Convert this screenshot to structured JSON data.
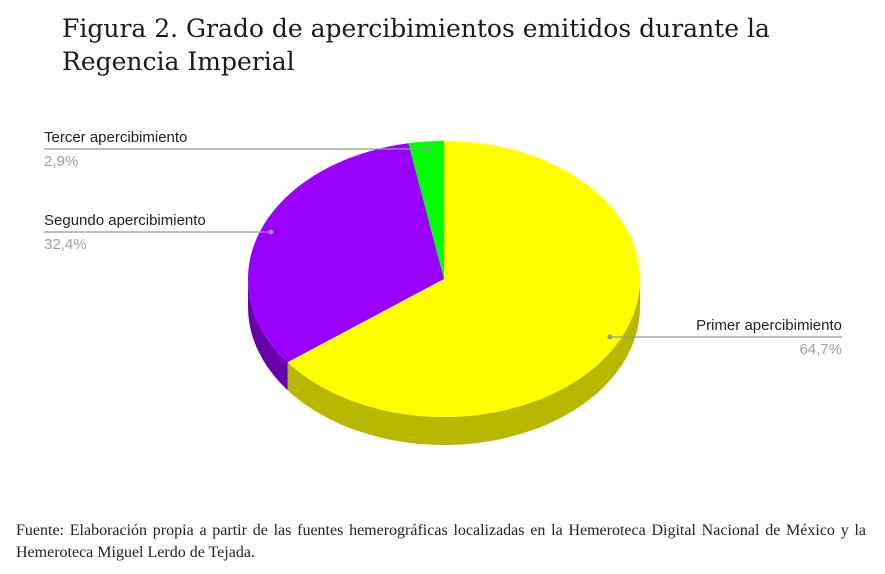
{
  "title": "Figura 2. Grado de apercibimientos emitidos durante la Regencia Imperial",
  "source_note": "Fuente: Elaboración propia a partir de las fuentes hemerográficas localizadas en la Hemeroteca Digital Nacional de México y la Hemeroteca Miguel Lerdo de Tejada.",
  "chart_data": {
    "type": "pie",
    "style": "3d",
    "slices": [
      {
        "label": "Primer apercibimiento",
        "value": 64.7,
        "value_label": "64,7%",
        "color": "#ffff00",
        "side_color": "#b8b800"
      },
      {
        "label": "Segundo apercibimiento",
        "value": 32.4,
        "value_label": "32,4%",
        "color": "#9900ff",
        "side_color": "#6600aa"
      },
      {
        "label": "Tercer apercibimiento",
        "value": 2.9,
        "value_label": "2,9%",
        "color": "#00ff00",
        "side_color": "#00aa00"
      }
    ],
    "legend": "none",
    "labels_outside": true
  }
}
